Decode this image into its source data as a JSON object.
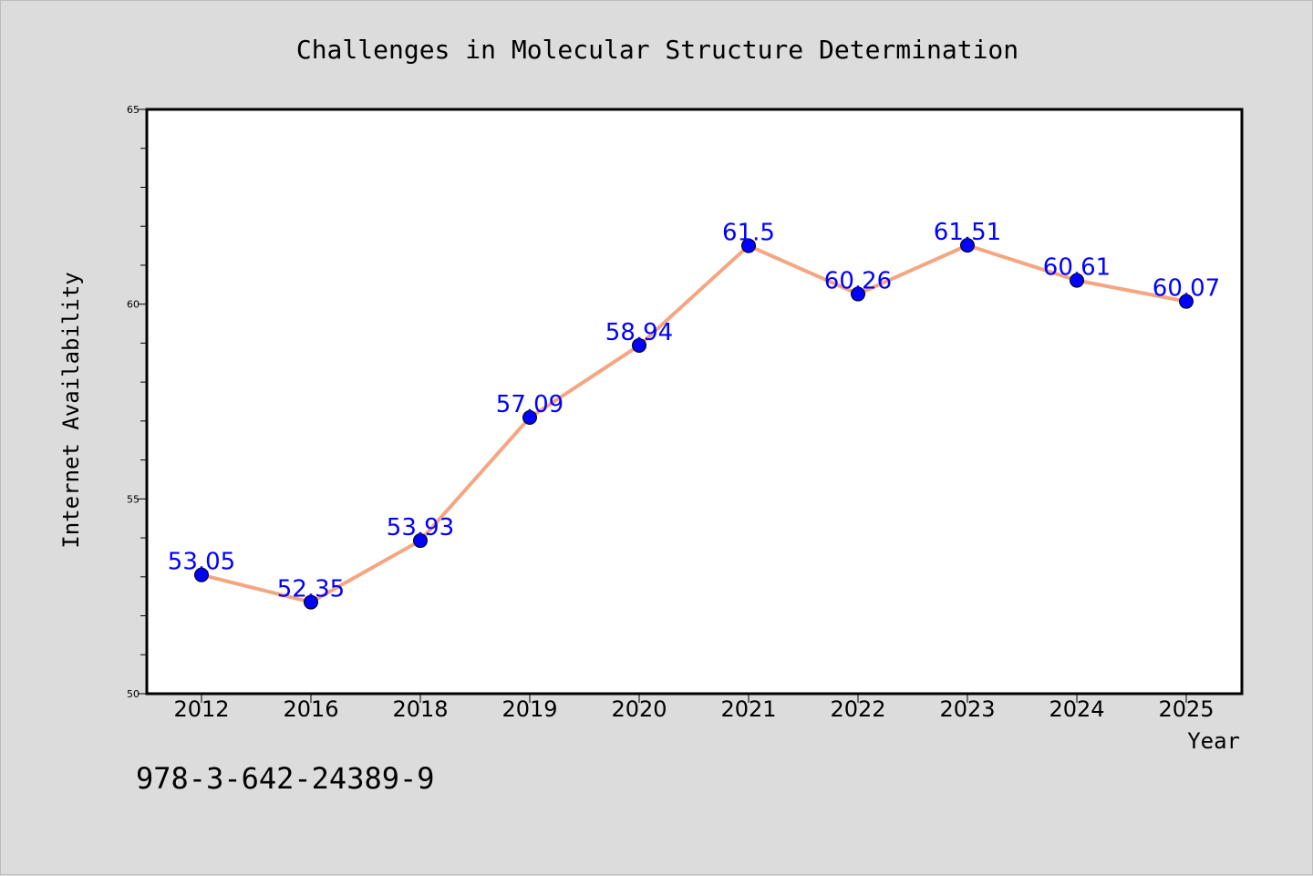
{
  "colors": {
    "background": "#dcdcdc",
    "plot_background": "#ffffff",
    "line": "#f4a582",
    "marker": "#0000ff",
    "data_label": "#0000ff",
    "axis": "#000000"
  },
  "footer": {
    "isbn": "978-3-642-24389-9"
  },
  "chart_data": {
    "type": "line",
    "title": "Challenges in Molecular Structure Determination",
    "xlabel": "Year",
    "ylabel": "Internet Availability",
    "categories": [
      "2012",
      "2016",
      "2018",
      "2019",
      "2020",
      "2021",
      "2022",
      "2023",
      "2024",
      "2025"
    ],
    "values": [
      53.05,
      52.35,
      53.93,
      57.09,
      58.94,
      61.5,
      60.26,
      61.51,
      60.61,
      60.07
    ],
    "data_labels": [
      "53.05",
      "52.35",
      "53.93",
      "57.09",
      "58.94",
      "61.5",
      "60.26",
      "61.51",
      "60.61",
      "60.07"
    ],
    "ylim": [
      50,
      65
    ],
    "yticks": [
      50,
      55,
      60,
      65
    ],
    "ytick_labels": [
      "50",
      "55",
      "60",
      "65"
    ],
    "grid": false,
    "legend": "none"
  }
}
